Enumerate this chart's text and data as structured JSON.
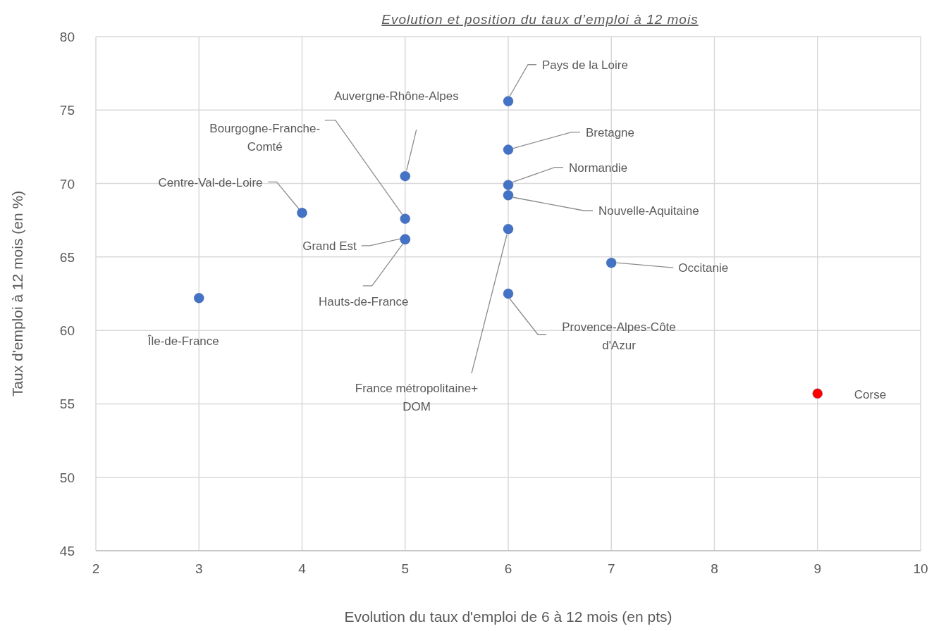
{
  "chart_data": {
    "type": "scatter",
    "title": "Evolution et position du taux d’emploi à 12 mois",
    "xlabel": "Evolution du taux d'emploi de 6 à 12 mois (en pts)",
    "ylabel": "Taux d'emploi à 12 mois (en %)",
    "xlim": [
      2,
      10
    ],
    "xticks": [
      2,
      3,
      4,
      5,
      6,
      7,
      8,
      9,
      10
    ],
    "ylim": [
      45,
      80
    ],
    "yticks": [
      45,
      50,
      55,
      60,
      65,
      70,
      75,
      80
    ],
    "grid": true,
    "marker": "circle",
    "series": [
      {
        "x": [
          3,
          4,
          5,
          5,
          5,
          5,
          6,
          6,
          6,
          6,
          6,
          6,
          7,
          9
        ],
        "values": [
          62.2,
          68.0,
          70.5,
          67.6,
          66.2,
          66.2,
          75.6,
          72.3,
          69.9,
          69.2,
          66.9,
          62.5,
          64.6,
          55.7
        ],
        "colors": [
          "#4472c4",
          "#4472c4",
          "#4472c4",
          "#4472c4",
          "#4472c4",
          "#4472c4",
          "#4472c4",
          "#4472c4",
          "#4472c4",
          "#4472c4",
          "#4472c4",
          "#4472c4",
          "#4472c4",
          "#ff0000"
        ]
      }
    ],
    "annotations": [
      "Île-de-France",
      {
        "text": "Centre-Val-de-Loire",
        "x": 4,
        "y": 68.0
      },
      "Auvergne-Rhône-Alpes",
      {
        "text": "Bourgogne-Franche-Comté",
        "x": 5,
        "y": 67.6
      },
      {
        "text": "Grand Est",
        "x": 5,
        "y": 66.2
      },
      {
        "text": "Hauts-de-France",
        "x": 5,
        "y": 66.2
      },
      {
        "text": "Pays de la Loire",
        "x": 6,
        "y": 75.6
      },
      {
        "text": "Bretagne",
        "x": 6,
        "y": 72.3
      },
      {
        "text": "Normandie",
        "x": 6,
        "y": 69.9
      },
      {
        "text": "Nouvelle-Aquitaine",
        "x": 6,
        "y": 69.2
      },
      {
        "text": "France métropolitaine+ DOM",
        "x": 6,
        "y": 66.9
      },
      "Provence-Alpes-Côte d'Azur",
      {
        "text": "Occitanie",
        "x": 7,
        "y": 64.6
      },
      "Corse"
    ]
  }
}
